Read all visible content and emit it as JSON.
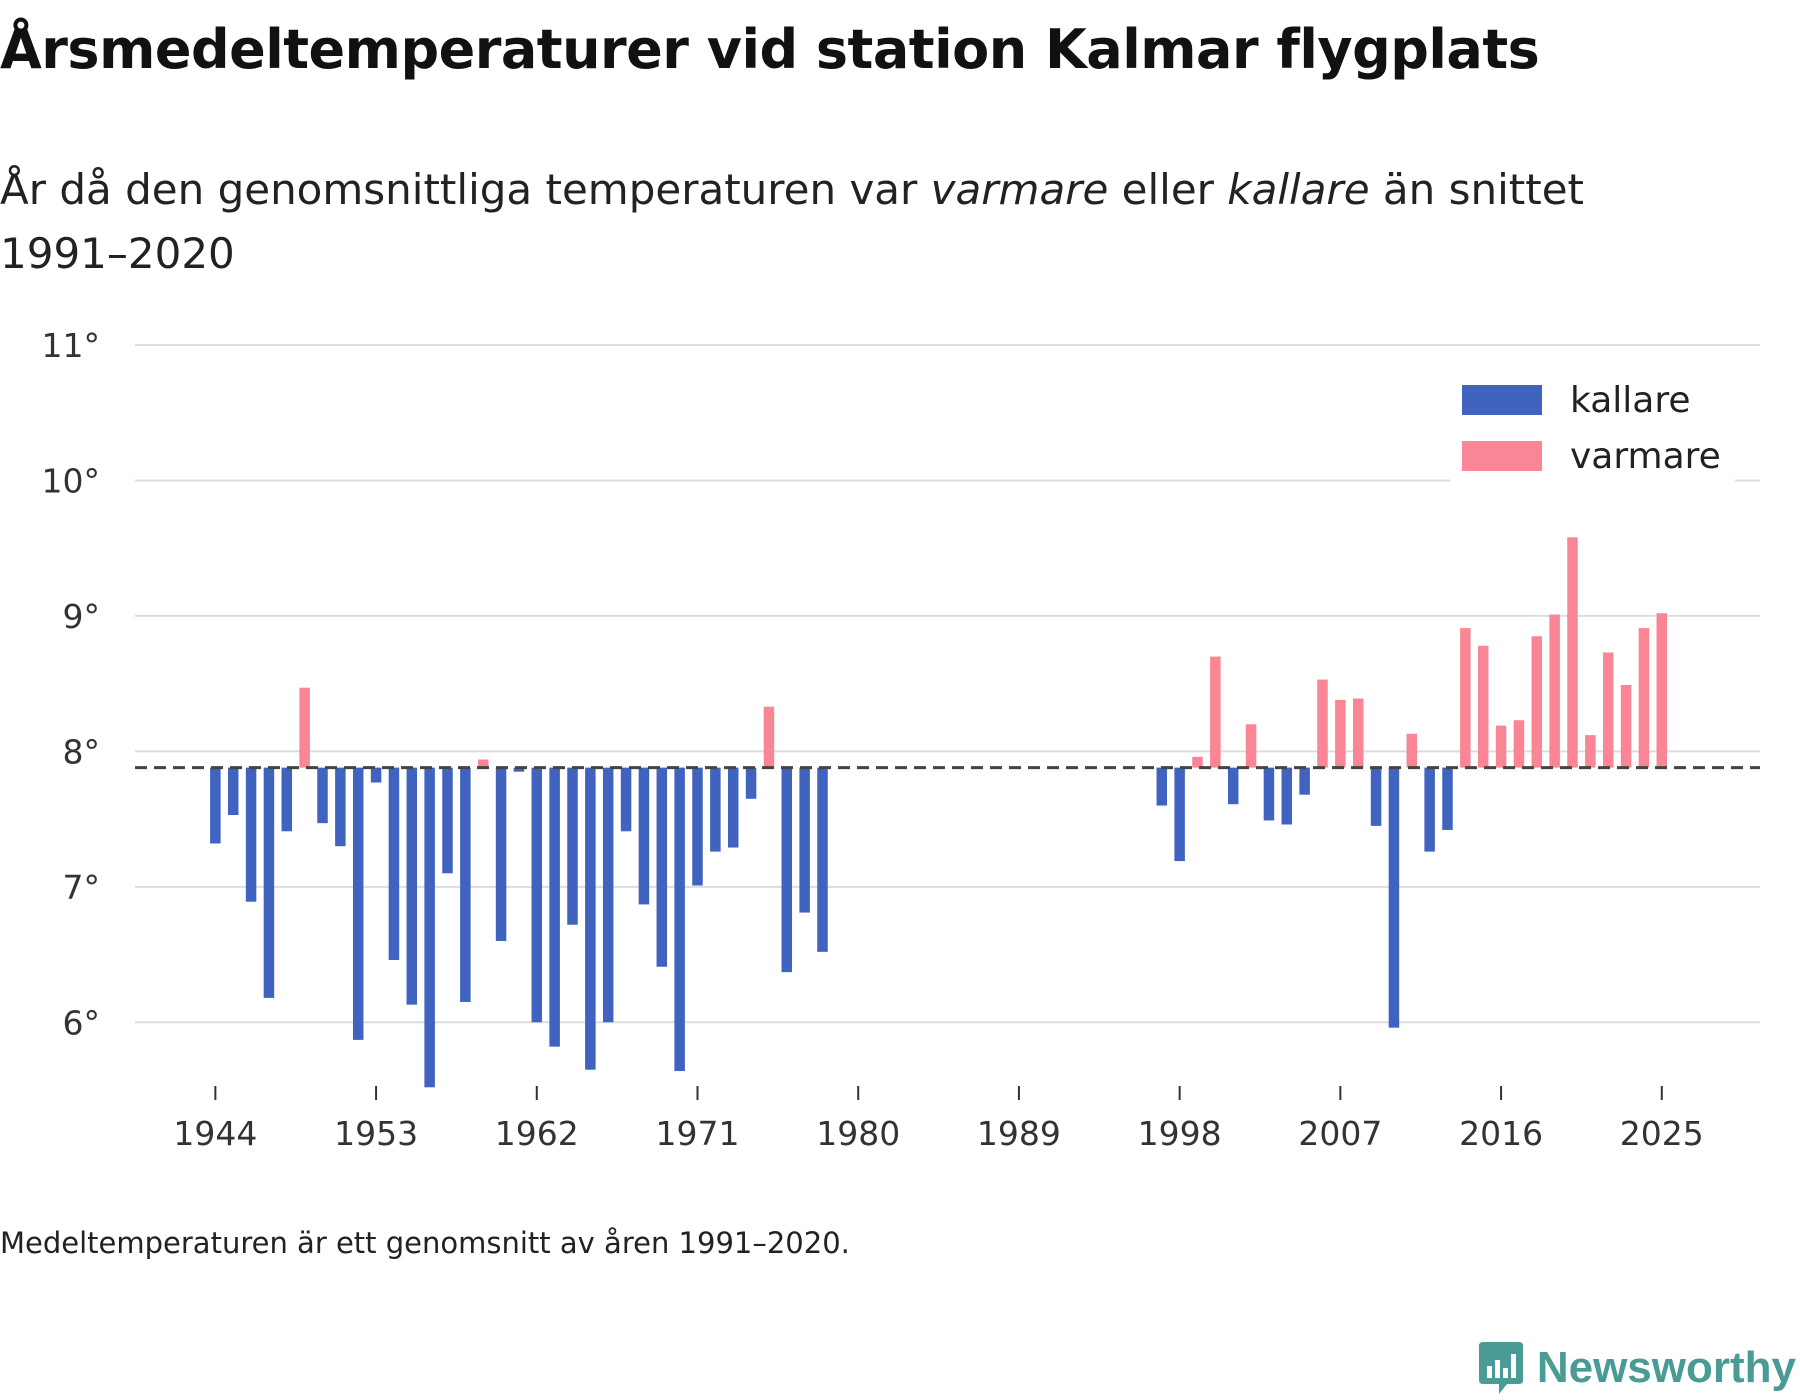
{
  "title": "Årsmedeltemperaturer vid station Kalmar flygplats",
  "subtitle": {
    "part1": "År då den genomsnittliga temperaturen var ",
    "warmer_word": "varmare",
    "part2": " eller ",
    "colder_word": "kallare",
    "part3": " än snittet 1991–2020"
  },
  "footnote": "Medeltemperaturen är ett genomsnitt av åren 1991–2020.",
  "brand": "Newsworthy",
  "chart_data": {
    "type": "bar",
    "title": "Årsmedeltemperaturer vid station Kalmar flygplats",
    "xlabel": "",
    "ylabel": "",
    "baseline": 7.88,
    "ylim": [
      5.5,
      11
    ],
    "yticks": [
      6,
      7,
      8,
      9,
      10,
      11
    ],
    "ytick_labels": [
      "6°",
      "7°",
      "8°",
      "9°",
      "10°",
      "11°"
    ],
    "xlim": [
      1939.5,
      2030.5
    ],
    "xticks": [
      1944,
      1953,
      1962,
      1971,
      1980,
      1989,
      1998,
      2007,
      2016,
      2025
    ],
    "xtick_labels": [
      "1944",
      "1953",
      "1962",
      "1971",
      "1980",
      "1989",
      "1998",
      "2007",
      "2016",
      "2025"
    ],
    "grid": true,
    "legend": {
      "position": "top-right",
      "items": [
        {
          "label": "kallare",
          "color": "#4063bf"
        },
        {
          "label": "varmare",
          "color": "#fa8595"
        }
      ]
    },
    "colors": {
      "colder": "#4063bf",
      "warmer": "#fa8595",
      "baseline": "#444444",
      "grid": "#dddddd"
    },
    "years": [
      1944,
      1945,
      1946,
      1947,
      1948,
      1949,
      1950,
      1951,
      1952,
      1953,
      1954,
      1955,
      1956,
      1957,
      1958,
      1959,
      1960,
      1961,
      1962,
      1963,
      1964,
      1965,
      1966,
      1967,
      1968,
      1969,
      1970,
      1971,
      1972,
      1973,
      1974,
      1975,
      1976,
      1977,
      1978,
      1997,
      1998,
      1999,
      2000,
      2001,
      2002,
      2003,
      2004,
      2005,
      2006,
      2007,
      2008,
      2009,
      2010,
      2011,
      2012,
      2013,
      2014,
      2015,
      2016,
      2017,
      2018,
      2019,
      2020,
      2021,
      2022,
      2023,
      2024,
      2025
    ],
    "values": [
      7.32,
      7.53,
      6.89,
      6.18,
      7.41,
      8.47,
      7.47,
      7.3,
      5.87,
      7.77,
      6.46,
      6.13,
      5.52,
      7.1,
      6.15,
      7.94,
      6.6,
      7.85,
      6.0,
      5.82,
      6.72,
      5.65,
      6.0,
      7.41,
      6.87,
      6.41,
      5.64,
      7.01,
      7.26,
      7.29,
      7.65,
      8.33,
      6.37,
      6.81,
      6.52,
      7.6,
      7.19,
      7.96,
      8.7,
      7.61,
      8.2,
      7.49,
      7.46,
      7.68,
      8.53,
      8.38,
      8.39,
      7.45,
      5.96,
      8.13,
      7.26,
      7.42,
      8.91,
      8.78,
      8.19,
      8.23,
      8.85,
      9.01,
      9.58,
      8.12,
      8.73,
      8.49,
      8.91,
      9.02
    ]
  }
}
